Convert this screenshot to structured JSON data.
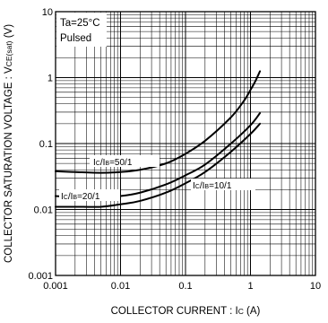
{
  "chart_data": {
    "type": "line",
    "x_scale": "log",
    "y_scale": "log",
    "xlim": [
      0.001,
      10
    ],
    "ylim": [
      0.001,
      10
    ],
    "grid": true,
    "xlabel_main": "COLLECTOR  CURRENT : I",
    "xlabel_sub": "C",
    "xlabel_unit": " (A)",
    "ylabel_main": "COLLECTOR SATURATION VOLTAGE : V",
    "ylabel_sub": "CE(sat)",
    "ylabel_unit": " (V)",
    "annotation_line1": "Ta=25°C",
    "annotation_line2": "Pulsed",
    "x_ticks": [
      "0.001",
      "0.01",
      "0.1",
      "1",
      "10"
    ],
    "y_ticks": [
      "0.001",
      "0.01",
      "0.1",
      "1",
      "10"
    ],
    "series": [
      {
        "name": "IC/IB=50/1",
        "label_parts": [
          "I",
          "C",
          "/I",
          "B",
          "=50/1"
        ],
        "x": [
          0.001,
          0.002,
          0.005,
          0.01,
          0.02,
          0.05,
          0.1,
          0.2,
          0.5,
          0.8,
          1.0,
          1.2,
          1.4
        ],
        "y": [
          0.038,
          0.037,
          0.036,
          0.037,
          0.04,
          0.05,
          0.07,
          0.11,
          0.25,
          0.45,
          0.65,
          0.9,
          1.25
        ]
      },
      {
        "name": "IC/IB=20/1",
        "label_parts": [
          "I",
          "C",
          "/I",
          "B",
          "=20/1"
        ],
        "x": [
          0.001,
          0.002,
          0.005,
          0.01,
          0.02,
          0.05,
          0.1,
          0.2,
          0.5,
          1.0,
          1.4
        ],
        "y": [
          0.016,
          0.0155,
          0.0155,
          0.016,
          0.018,
          0.024,
          0.033,
          0.048,
          0.1,
          0.19,
          0.29
        ]
      },
      {
        "name": "IC/IB=10/1",
        "label_parts": [
          "I",
          "C",
          "/I",
          "B",
          "=10/1"
        ],
        "x": [
          0.001,
          0.002,
          0.005,
          0.01,
          0.02,
          0.05,
          0.1,
          0.2,
          0.5,
          1.0,
          1.4
        ],
        "y": [
          0.011,
          0.011,
          0.011,
          0.012,
          0.0135,
          0.018,
          0.025,
          0.037,
          0.075,
          0.14,
          0.2
        ]
      }
    ]
  }
}
